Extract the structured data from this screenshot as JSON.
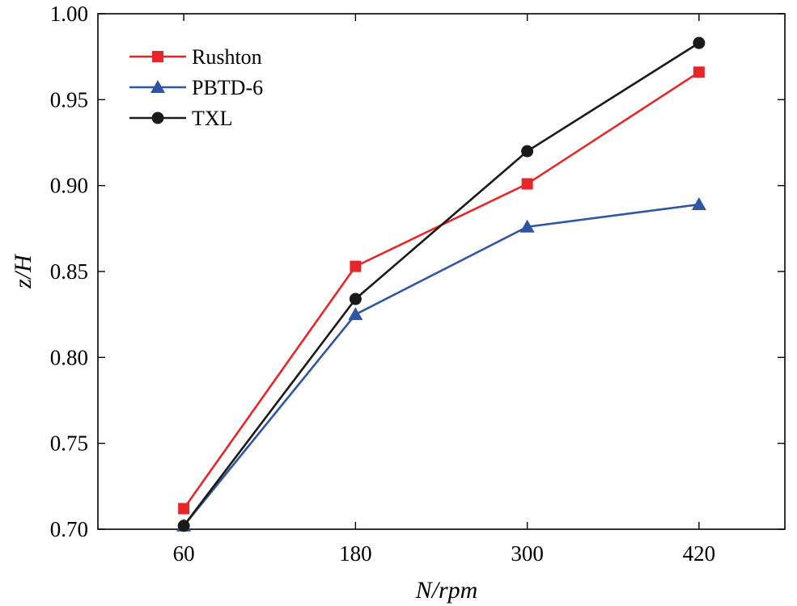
{
  "chart_data": {
    "type": "line",
    "title": "",
    "xlabel": "N/rpm",
    "ylabel": "z/H",
    "categories": [
      "60",
      "180",
      "300",
      "420"
    ],
    "x": [
      60,
      180,
      300,
      420
    ],
    "xlim": [
      0,
      480
    ],
    "ylim": [
      0.7,
      1.0
    ],
    "yticks": [
      0.7,
      0.75,
      0.8,
      0.85,
      0.9,
      0.95,
      1.0
    ],
    "ytick_labels": [
      "0.70",
      "0.75",
      "0.80",
      "0.85",
      "0.90",
      "0.95",
      "1.00"
    ],
    "grid": false,
    "legend_position": "top-left",
    "series": [
      {
        "name": "Rushton",
        "marker": "square",
        "color": "#e8262a",
        "values": [
          0.712,
          0.853,
          0.901,
          0.966
        ]
      },
      {
        "name": "PBTD-6",
        "marker": "triangle",
        "color": "#2f55a4",
        "values": [
          0.702,
          0.825,
          0.876,
          0.889
        ]
      },
      {
        "name": "TXL",
        "marker": "circle",
        "color": "#1a1a1a",
        "values": [
          0.702,
          0.834,
          0.92,
          0.983
        ]
      }
    ]
  }
}
